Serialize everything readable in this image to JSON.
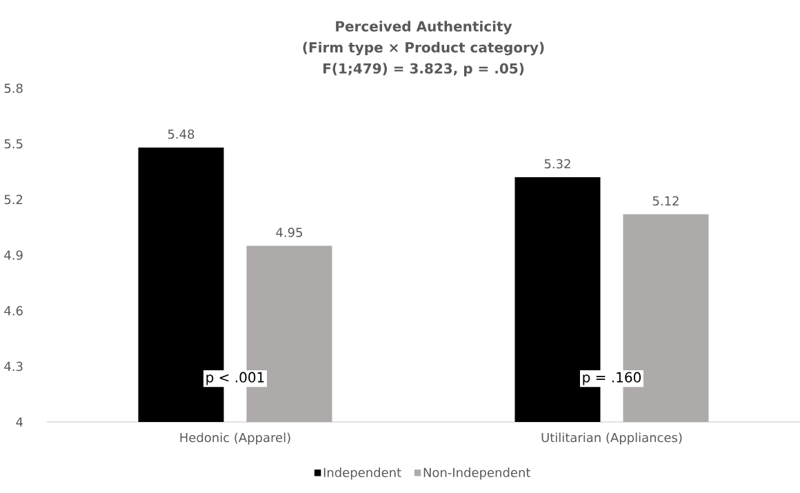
{
  "chart_data": {
    "type": "bar",
    "title": "Perceived Authenticity",
    "subtitle": "(Firm type × Product category)",
    "annotations": [
      "F(1;479) = 3.823, p = .05)",
      "p < .001",
      "p = .160"
    ],
    "categories": [
      "Hedonic (Apparel)",
      "Utilitarian (Appliances)"
    ],
    "series": [
      {
        "name": "Independent",
        "color": "#000000",
        "values": [
          5.48,
          5.32
        ]
      },
      {
        "name": "Non-Independent",
        "color": "#aeaaaa",
        "values": [
          4.95,
          5.12
        ]
      }
    ],
    "ylim": [
      4,
      5.8
    ],
    "yticks": [
      4,
      4.3,
      4.6,
      4.9,
      5.2,
      5.5,
      5.8
    ],
    "data_labels": true,
    "legend": "bottom",
    "grid": false
  }
}
